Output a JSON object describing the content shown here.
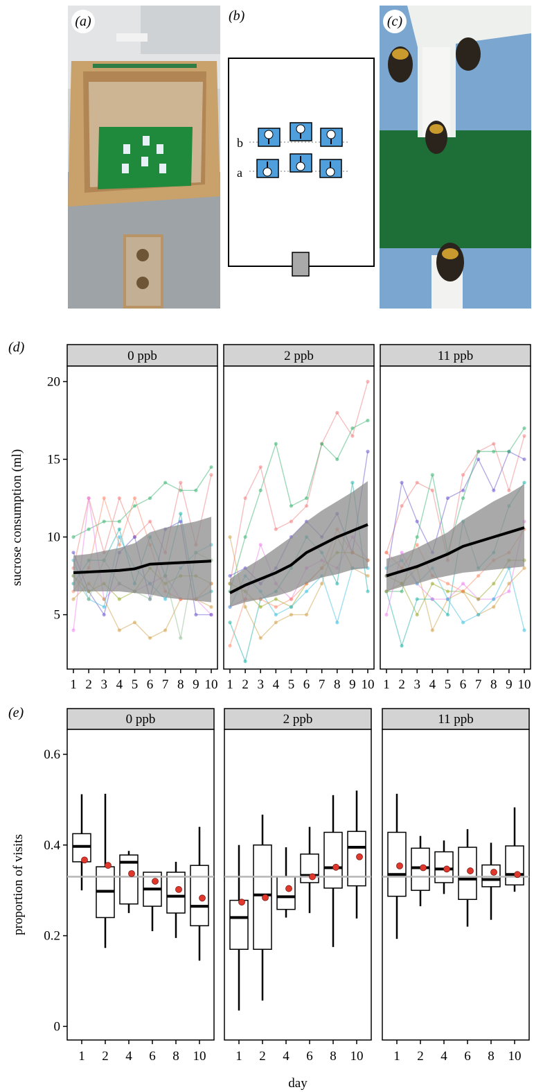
{
  "panels": {
    "a": {
      "letter": "(a)"
    },
    "b": {
      "letter": "(b)",
      "row_b_label": "b",
      "row_a_label": "a"
    },
    "c": {
      "letter": "(c)"
    },
    "d": {
      "letter": "(d)"
    },
    "e": {
      "letter": "(e)"
    }
  },
  "colors": {
    "facet_strip": "#d3d3d3",
    "box_blue": "#4f9fdc",
    "arena_green": "#1f8a3c",
    "wood": "#c9a16b",
    "ribbon": "#8c8c8c",
    "mean_point": "#e0382d",
    "reference_line": "#b5b5b5"
  },
  "chart_data": [
    {
      "type": "line",
      "panel": "d",
      "ylabel": "sucrose consumption (ml)",
      "xlabel": "",
      "ylim": [
        1.5,
        21
      ],
      "yticks": [
        5,
        10,
        15,
        20
      ],
      "x": [
        1,
        2,
        3,
        4,
        5,
        6,
        7,
        8,
        9,
        10
      ],
      "facets": [
        {
          "label": "0 ppb",
          "fit": [
            7.7,
            7.75,
            7.8,
            7.85,
            7.95,
            8.25,
            8.3,
            8.35,
            8.4,
            8.45
          ],
          "ribbon_low": [
            6.5,
            6.5,
            6.5,
            6.5,
            6.4,
            6.3,
            6.1,
            6.0,
            5.9,
            5.8
          ],
          "ribbon_high": [
            8.8,
            8.9,
            9.1,
            9.3,
            9.6,
            10.3,
            10.6,
            10.8,
            11.0,
            11.3
          ],
          "series": [
            {
              "color": "#3cb371",
              "values": [
                10,
                10.5,
                11,
                11,
                12,
                12.5,
                13.5,
                13,
                13,
                14.5
              ]
            },
            {
              "color": "#f08080",
              "values": [
                8,
                12.5,
                9,
                12.5,
                10,
                11,
                9,
                13.5,
                9.5,
                14
              ]
            },
            {
              "color": "#ee82ee",
              "values": [
                4,
                12.5,
                6,
                7,
                6.5,
                7,
                7.5,
                6,
                6,
                5
              ]
            },
            {
              "color": "#20b2aa",
              "values": [
                7,
                8.5,
                8.5,
                10.5,
                7,
                10,
                7.5,
                11.5,
                6,
                6.5
              ]
            },
            {
              "color": "#6a5acd",
              "values": [
                9,
                6.5,
                5,
                9,
                10,
                6,
                10.5,
                11,
                5,
                5
              ]
            },
            {
              "color": "#d2a04a",
              "values": [
                6,
                7,
                6,
                4,
                4.5,
                3.5,
                4,
                6,
                6,
                5.5
              ]
            },
            {
              "color": "#9aaa2a",
              "values": [
                7.5,
                6.5,
                7,
                6,
                6.5,
                8,
                7,
                7.5,
                7.5,
                7
              ]
            },
            {
              "color": "#ff8c69",
              "values": [
                6.5,
                8,
                12.5,
                9.5,
                12.5,
                9.5,
                6.5,
                6,
                6,
                7
              ]
            },
            {
              "color": "#40c0e0",
              "values": [
                8.5,
                6,
                5.5,
                10,
                8,
                7,
                6,
                8,
                9,
                9.5
              ]
            },
            {
              "color": "#8fbc8f",
              "values": [
                7.5,
                6,
                8.5,
                7,
                6.5,
                6,
                7.5,
                3.5,
                9,
                8.5
              ]
            }
          ]
        },
        {
          "label": "2 ppb",
          "fit": [
            6.4,
            6.9,
            7.3,
            7.7,
            8.2,
            9.0,
            9.5,
            10.0,
            10.4,
            10.8
          ],
          "ribbon_low": [
            5.5,
            5.8,
            6.0,
            6.2,
            6.5,
            7.0,
            7.4,
            7.6,
            7.9,
            8.0
          ],
          "ribbon_high": [
            7.3,
            8.0,
            8.6,
            9.3,
            10.0,
            11.0,
            11.7,
            12.3,
            12.9,
            13.6
          ],
          "series": [
            {
              "color": "#f08080",
              "values": [
                7,
                12.5,
                14.5,
                10.5,
                11,
                12,
                16,
                18,
                16.5,
                20
              ]
            },
            {
              "color": "#3cb371",
              "values": [
                6.5,
                10,
                13,
                16,
                12,
                12.5,
                16,
                15,
                17,
                17.5
              ]
            },
            {
              "color": "#6a5acd",
              "values": [
                7.5,
                8,
                7,
                8,
                10,
                11,
                10,
                11.5,
                9,
                15.5
              ]
            },
            {
              "color": "#20b2aa",
              "values": [
                4.5,
                2,
                6,
                6.5,
                8,
                10,
                9,
                7,
                13.5,
                6.5
              ]
            },
            {
              "color": "#d2a04a",
              "values": [
                10,
                5.5,
                3.5,
                4.5,
                5,
                5,
                7,
                10,
                8,
                7.5
              ]
            },
            {
              "color": "#ee82ee",
              "values": [
                5.5,
                6,
                9.5,
                7,
                6,
                8,
                8.5,
                8,
                10,
                8.5
              ]
            },
            {
              "color": "#9aaa2a",
              "values": [
                7,
                6.5,
                5.5,
                6,
                5.5,
                7,
                8,
                9,
                9,
                8.5
              ]
            },
            {
              "color": "#40c0e0",
              "values": [
                5.5,
                7.5,
                6.5,
                5,
                5.5,
                6.5,
                7.5,
                4.5,
                8,
                8
              ]
            },
            {
              "color": "#ff8c69",
              "values": [
                3,
                6,
                6,
                5.5,
                6,
                7,
                8,
                10.5,
                9,
                8.5
              ]
            }
          ]
        },
        {
          "label": "11 ppb",
          "fit": [
            7.5,
            7.8,
            8.1,
            8.5,
            8.9,
            9.4,
            9.7,
            10.0,
            10.3,
            10.6
          ],
          "ribbon_low": [
            6.5,
            6.8,
            7.0,
            7.3,
            7.5,
            7.7,
            7.8,
            7.9,
            8.0,
            8.1
          ],
          "ribbon_high": [
            8.6,
            8.9,
            9.3,
            9.8,
            10.3,
            11.1,
            11.7,
            12.3,
            12.8,
            13.4
          ],
          "series": [
            {
              "color": "#f08080",
              "values": [
                9,
                12,
                13.5,
                13,
                8.5,
                14,
                15.5,
                16,
                13,
                16.5
              ]
            },
            {
              "color": "#6a5acd",
              "values": [
                7.5,
                13.5,
                11,
                9,
                12.5,
                13,
                15,
                13,
                15.5,
                15
              ]
            },
            {
              "color": "#3cb371",
              "values": [
                6.5,
                6.5,
                10,
                14,
                9,
                12.5,
                15.5,
                15.5,
                15.5,
                17
              ]
            },
            {
              "color": "#20b2aa",
              "values": [
                6.5,
                3,
                6,
                6,
                5,
                11,
                8,
                9,
                12,
                13.5
              ]
            },
            {
              "color": "#d2a04a",
              "values": [
                6.5,
                7,
                8,
                4,
                6,
                6.5,
                5,
                5.5,
                7,
                8
              ]
            },
            {
              "color": "#ee82ee",
              "values": [
                5,
                9,
                7,
                6,
                6,
                7,
                6,
                6,
                6.5,
                11
              ]
            },
            {
              "color": "#9aaa2a",
              "values": [
                7.5,
                7,
                5,
                7,
                6.5,
                6.5,
                6,
                7,
                8.5,
                8.5
              ]
            },
            {
              "color": "#40c0e0",
              "values": [
                8,
                8.5,
                7,
                8,
                6,
                4.5,
                5,
                6,
                8,
                4
              ]
            },
            {
              "color": "#ff8c69",
              "values": [
                9,
                8,
                9.5,
                7.5,
                7,
                6.5,
                7.5,
                8.5,
                9,
                10.5
              ]
            }
          ]
        }
      ]
    },
    {
      "type": "box",
      "panel": "e",
      "ylabel": "proportion of visits",
      "xlabel": "day",
      "ylim": [
        -0.03,
        0.655
      ],
      "yticks": [
        0,
        0.2,
        0.4,
        0.6
      ],
      "ytick_labels": [
        "0",
        "0.2",
        "0.4",
        "0.6"
      ],
      "reference_line": 0.33,
      "categories": [
        "1",
        "2",
        "4",
        "6",
        "8",
        "10"
      ],
      "facets": [
        {
          "label": "0 ppb",
          "boxes": [
            {
              "min": 0.3,
              "q1": 0.363,
              "median": 0.397,
              "q3": 0.425,
              "max": 0.512,
              "mean": 0.367
            },
            {
              "min": 0.173,
              "q1": 0.24,
              "median": 0.298,
              "q3": 0.352,
              "max": 0.513,
              "mean": 0.355
            },
            {
              "min": 0.25,
              "q1": 0.27,
              "median": 0.362,
              "q3": 0.378,
              "max": 0.387,
              "mean": 0.337
            },
            {
              "min": 0.21,
              "q1": 0.265,
              "median": 0.303,
              "q3": 0.34,
              "max": 0.34,
              "mean": 0.32
            },
            {
              "min": 0.195,
              "q1": 0.25,
              "median": 0.287,
              "q3": 0.34,
              "max": 0.363,
              "mean": 0.302
            },
            {
              "min": 0.145,
              "q1": 0.222,
              "median": 0.265,
              "q3": 0.355,
              "max": 0.44,
              "mean": 0.283
            }
          ]
        },
        {
          "label": "2 ppb",
          "boxes": [
            {
              "min": 0.035,
              "q1": 0.17,
              "median": 0.24,
              "q3": 0.278,
              "max": 0.4,
              "mean": 0.274
            },
            {
              "min": 0.057,
              "q1": 0.17,
              "median": 0.29,
              "q3": 0.4,
              "max": 0.467,
              "mean": 0.284
            },
            {
              "min": 0.24,
              "q1": 0.258,
              "median": 0.286,
              "q3": 0.33,
              "max": 0.395,
              "mean": 0.304
            },
            {
              "min": 0.25,
              "q1": 0.317,
              "median": 0.333,
              "q3": 0.38,
              "max": 0.44,
              "mean": 0.33
            },
            {
              "min": 0.175,
              "q1": 0.305,
              "median": 0.35,
              "q3": 0.428,
              "max": 0.51,
              "mean": 0.351
            },
            {
              "min": 0.238,
              "q1": 0.31,
              "median": 0.395,
              "q3": 0.43,
              "max": 0.52,
              "mean": 0.374
            }
          ]
        },
        {
          "label": "11 ppb",
          "boxes": [
            {
              "min": 0.193,
              "q1": 0.287,
              "median": 0.335,
              "q3": 0.428,
              "max": 0.513,
              "mean": 0.354
            },
            {
              "min": 0.265,
              "q1": 0.3,
              "median": 0.35,
              "q3": 0.393,
              "max": 0.42,
              "mean": 0.35
            },
            {
              "min": 0.292,
              "q1": 0.317,
              "median": 0.347,
              "q3": 0.385,
              "max": 0.41,
              "mean": 0.347
            },
            {
              "min": 0.22,
              "q1": 0.28,
              "median": 0.325,
              "q3": 0.395,
              "max": 0.435,
              "mean": 0.343
            },
            {
              "min": 0.235,
              "q1": 0.308,
              "median": 0.324,
              "q3": 0.356,
              "max": 0.405,
              "mean": 0.34
            },
            {
              "min": 0.297,
              "q1": 0.312,
              "median": 0.335,
              "q3": 0.398,
              "max": 0.483,
              "mean": 0.335
            }
          ]
        }
      ]
    }
  ]
}
